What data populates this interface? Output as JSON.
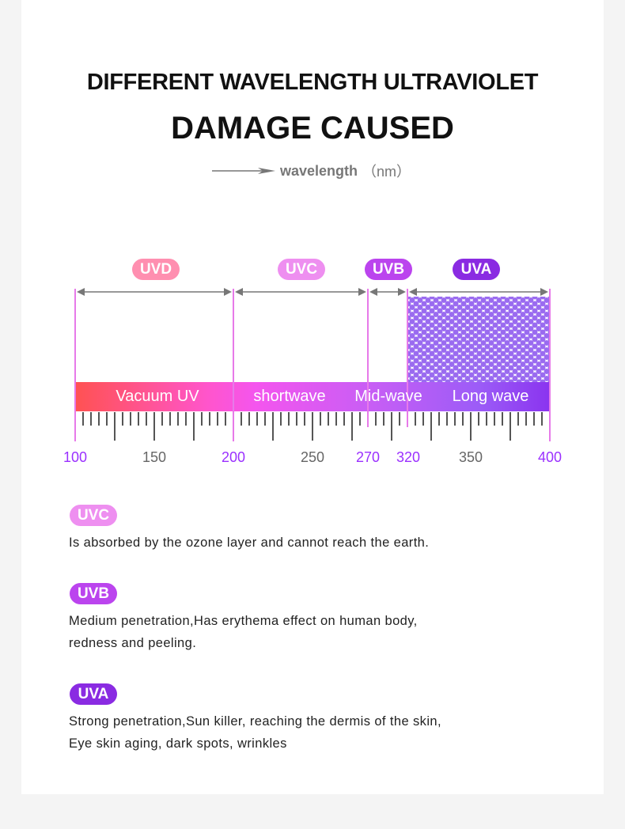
{
  "title_line1": "DIFFERENT WAVELENGTH ULTRAVIOLET",
  "title_line2": "DAMAGE CAUSED",
  "axis": {
    "label": "wavelength",
    "unit": "（nm）",
    "arrow_icon": "arrow-right-icon"
  },
  "bands": [
    {
      "badge": "UVD",
      "name": "Vacuum UV",
      "color": "#ff8fb0",
      "range": [
        100,
        200
      ]
    },
    {
      "badge": "UVC",
      "name": "shortwave",
      "color": "#ee8ff0",
      "range": [
        200,
        270
      ]
    },
    {
      "badge": "UVB",
      "name": "Mid-wave",
      "color": "#bb44ee",
      "range": [
        270,
        320
      ]
    },
    {
      "badge": "UVA",
      "name": "Long wave",
      "color": "#8a2be2",
      "range": [
        320,
        400
      ]
    }
  ],
  "scale_labels": [
    {
      "value": "100",
      "color": "#9b30ff"
    },
    {
      "value": "150",
      "color": "#666666"
    },
    {
      "value": "200",
      "color": "#9b30ff"
    },
    {
      "value": "250",
      "color": "#666666"
    },
    {
      "value": "270",
      "color": "#9b30ff"
    },
    {
      "value": "320",
      "color": "#9b30ff"
    },
    {
      "value": "350",
      "color": "#666666"
    },
    {
      "value": "400",
      "color": "#9b30ff"
    }
  ],
  "descriptions": [
    {
      "badge": "UVC",
      "color": "#ee8ff0",
      "lines": [
        "Is absorbed by the ozone layer and cannot reach the earth."
      ]
    },
    {
      "badge": "UVB",
      "color": "#bb44ee",
      "lines": [
        "Medium penetration,Has erythema effect on human body,",
        "redness and peeling."
      ]
    },
    {
      "badge": "UVA",
      "color": "#8a2be2",
      "lines": [
        "Strong penetration,Sun killer, reaching the dermis of the skin,",
        "Eye skin aging, dark spots, wrinkles"
      ]
    }
  ]
}
